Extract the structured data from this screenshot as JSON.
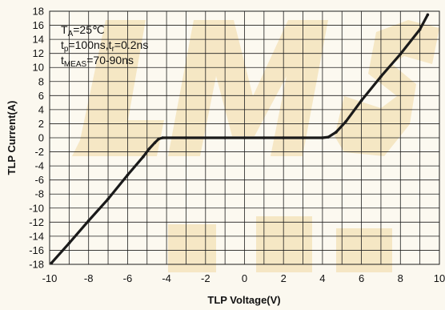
{
  "chart_data": {
    "type": "line",
    "xlabel": "TLP Voltage(V)",
    "ylabel": "TLP Current(A)",
    "xlim": [
      -10,
      10
    ],
    "ylim": [
      -18,
      18
    ],
    "xticks": [
      -10,
      -8,
      -6,
      -4,
      -2,
      0,
      2,
      4,
      6,
      8,
      10
    ],
    "yticks": [
      18,
      16,
      14,
      12,
      10,
      8,
      6,
      4,
      2,
      0,
      -2,
      -4,
      -6,
      -8,
      -10,
      -12,
      -14,
      -16,
      -18
    ],
    "x_minor_step": 1,
    "grid": true,
    "annotations": {
      "line1": {
        "main": "T",
        "sub": "A",
        "rest": "=25℃"
      },
      "line2": {
        "p1": "t",
        "s1": "p",
        "p2": "=100ns,t",
        "s2": "r",
        "p3": "=0.2ns"
      },
      "line3": {
        "p1": "t",
        "s1": "MEAS",
        "p2": "=70-90ns"
      }
    },
    "series": [
      {
        "color": "#1a1a1a",
        "x": [
          -9.9,
          -9.0,
          -8.0,
          -7.0,
          -6.0,
          -5.2,
          -4.9,
          -4.6,
          -4.4,
          -4.2,
          -3.0,
          -1.0,
          0.0,
          1.0,
          2.0,
          3.0,
          4.0,
          4.3,
          4.7,
          5.2,
          6.0,
          7.0,
          8.0,
          9.0,
          9.4
        ],
        "y": [
          -17.8,
          -15.0,
          -11.8,
          -8.7,
          -5.3,
          -2.7,
          -1.6,
          -0.7,
          -0.15,
          0.0,
          0.0,
          0.0,
          0.0,
          0.0,
          0.0,
          0.0,
          0.0,
          0.1,
          0.8,
          2.3,
          5.3,
          8.7,
          11.9,
          15.4,
          17.5
        ]
      }
    ]
  },
  "colors": {
    "plot_background": "#fcf9f0",
    "grid": "#1e1e1e",
    "watermark": "#f4e4bd"
  }
}
